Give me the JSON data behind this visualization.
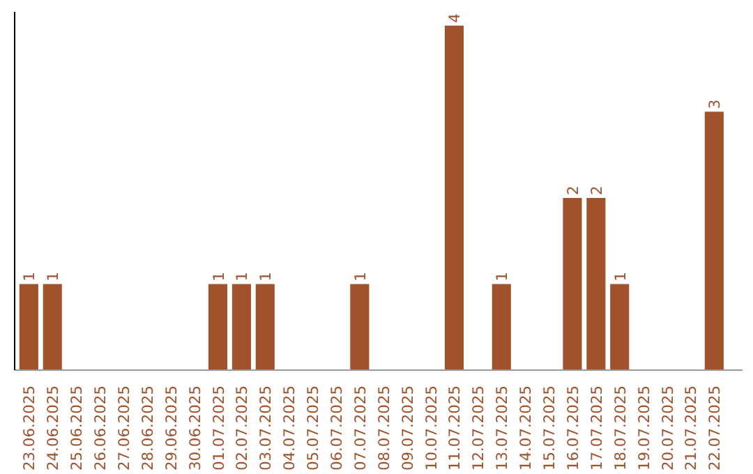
{
  "chart_data": {
    "type": "bar",
    "categories": [
      "23.06.2025",
      "24.06.2025",
      "25.06.2025",
      "26.06.2025",
      "27.06.2025",
      "28.06.2025",
      "29.06.2025",
      "30.06.2025",
      "01.07.2025",
      "02.07.2025",
      "03.07.2025",
      "04.07.2025",
      "05.07.2025",
      "06.07.2025",
      "07.07.2025",
      "08.07.2025",
      "09.07.2025",
      "10.07.2025",
      "11.07.2025",
      "12.07.2025",
      "13.07.2025",
      "14.07.2025",
      "15.07.2025",
      "16.07.2025",
      "17.07.2025",
      "18.07.2025",
      "19.07.2025",
      "20.07.2025",
      "21.07.2025",
      "22.07.2025"
    ],
    "values": [
      1,
      1,
      0,
      0,
      0,
      0,
      0,
      0,
      1,
      1,
      1,
      0,
      0,
      0,
      1,
      0,
      0,
      0,
      4,
      0,
      1,
      0,
      0,
      2,
      2,
      1,
      0,
      0,
      0,
      3
    ],
    "value_labels": [
      "1",
      "1",
      null,
      null,
      null,
      null,
      null,
      null,
      "1",
      "1",
      "1",
      null,
      null,
      null,
      "1",
      null,
      null,
      null,
      "4",
      null,
      "1",
      null,
      null,
      "2",
      "2",
      "1",
      null,
      null,
      null,
      "3"
    ],
    "color": "#a0522d",
    "tick_labels": "x",
    "grid": false
  }
}
